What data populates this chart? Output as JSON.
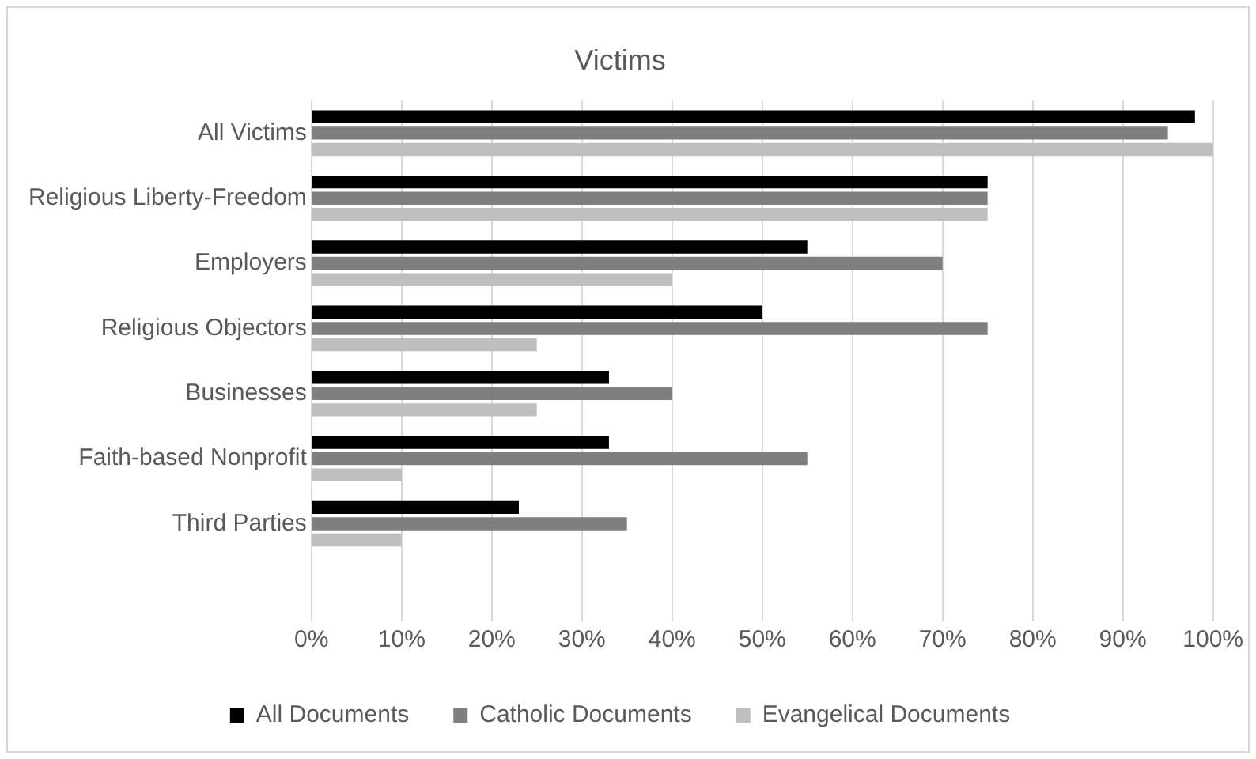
{
  "chart_data": {
    "type": "bar",
    "orientation": "horizontal",
    "title": "Victims",
    "categories": [
      "All Victims",
      "Religious Liberty-Freedom",
      "Employers",
      "Religious Objectors",
      "Businesses",
      "Faith-based Nonprofit",
      "Third Parties",
      null
    ],
    "series": [
      {
        "name": "All Documents",
        "color": "#000000",
        "values": [
          98,
          75,
          55,
          50,
          33,
          33,
          23,
          null
        ]
      },
      {
        "name": "Catholic Documents",
        "color": "#7f7f7f",
        "values": [
          95,
          75,
          70,
          75,
          40,
          55,
          35,
          null
        ]
      },
      {
        "name": "Evangelical Documents",
        "color": "#bfbfbf",
        "values": [
          100,
          75,
          40,
          25,
          25,
          10,
          10,
          null
        ]
      }
    ],
    "xlim": [
      0,
      100
    ],
    "xticks": [
      {
        "value": 0,
        "label": "0%"
      },
      {
        "value": 10,
        "label": "10%"
      },
      {
        "value": 20,
        "label": "20%"
      },
      {
        "value": 30,
        "label": "30%"
      },
      {
        "value": 40,
        "label": "40%"
      },
      {
        "value": 50,
        "label": "50%"
      },
      {
        "value": 60,
        "label": "60%"
      },
      {
        "value": 70,
        "label": "70%"
      },
      {
        "value": 80,
        "label": "80%"
      },
      {
        "value": 90,
        "label": "90%"
      },
      {
        "value": 100,
        "label": "100%"
      }
    ],
    "grid": "x",
    "legend": "bottom"
  }
}
